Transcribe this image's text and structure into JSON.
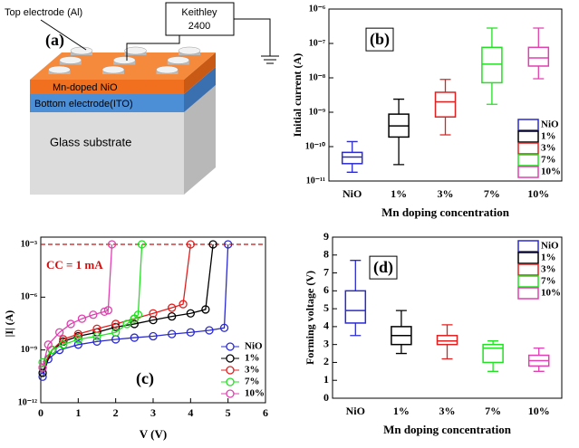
{
  "diagram": {
    "label": "(a)",
    "top_electrode": "Top electrode (Al)",
    "instrument_line1": "Keithley",
    "instrument_line2": "2400",
    "layer1": "Mn-doped NiO",
    "layer2": "Bottom electrode(ITO)",
    "layer3": "Glass substrate"
  },
  "chart_data": [
    {
      "type": "box",
      "label": "(b)",
      "x_label": "Mn doping concentration",
      "y_label": "Initial current (A)",
      "categories": [
        "NiO",
        "1%",
        "3%",
        "7%",
        "10%"
      ],
      "colors": [
        "#2a2ad0",
        "#000000",
        "#e02020",
        "#22e022",
        "#e040b0"
      ],
      "min": [
        1.8e-11,
        3e-11,
        2.2e-10,
        1.7e-09,
        9.4e-09
      ],
      "q1": [
        3.2e-11,
        1.9e-10,
        7.3e-10,
        7.2e-09,
        2.2e-08
      ],
      "median": [
        5e-11,
        4e-10,
        2e-09,
        2.5e-08,
        3.8e-08
      ],
      "q3": [
        6.8e-11,
        8.8e-10,
        3.8e-09,
        7.7e-08,
        7.7e-08
      ],
      "max": [
        1.4e-10,
        2.4e-09,
        9e-09,
        2.8e-07,
        2.8e-07
      ],
      "log_y": true,
      "ylim": [
        1e-11,
        1e-06
      ],
      "yticks": [
        {
          "value": 1e-11,
          "label": "10⁻¹¹"
        },
        {
          "value": 1e-10,
          "label": "10⁻¹⁰"
        },
        {
          "value": 1e-09,
          "label": "10⁻⁹"
        },
        {
          "value": 1e-08,
          "label": "10⁻⁸"
        },
        {
          "value": 1e-07,
          "label": "10⁻⁷"
        },
        {
          "value": 1e-06,
          "label": "10⁻⁶"
        }
      ],
      "legend": "lower right"
    },
    {
      "type": "line",
      "label": "(c)",
      "x_label": "V (V)",
      "y_label": "|I| (A)",
      "series": [
        {
          "name": "NiO",
          "color": "#2a2ad0",
          "x": [
            0.05,
            0.2,
            0.5,
            1,
            1.5,
            2,
            2.5,
            3,
            3.5,
            4,
            4.5,
            4.9,
            5.0
          ],
          "values": [
            3e-11,
            3e-10,
            1e-09,
            2e-09,
            3e-09,
            4e-09,
            5e-09,
            6e-09,
            8e-09,
            1e-08,
            1.3e-08,
            1.8e-08,
            0.001
          ]
        },
        {
          "name": "1%",
          "color": "#000000",
          "x": [
            0.05,
            0.3,
            0.6,
            1,
            1.5,
            2,
            2.5,
            3,
            3.5,
            4,
            4.4,
            4.6
          ],
          "values": [
            5e-11,
            1e-09,
            3e-09,
            6e-09,
            1e-08,
            2e-08,
            3e-08,
            5e-08,
            8e-08,
            1.2e-07,
            2e-07,
            0.001
          ]
        },
        {
          "name": "3%",
          "color": "#e02020",
          "x": [
            0.05,
            0.3,
            0.6,
            1,
            1.5,
            2,
            2.5,
            3,
            3.5,
            3.8,
            4.0
          ],
          "values": [
            1e-10,
            1e-09,
            4e-09,
            8e-09,
            1.6e-08,
            3e-08,
            6e-08,
            1.2e-07,
            2.5e-07,
            4e-07,
            0.001
          ]
        },
        {
          "name": "7%",
          "color": "#22e022",
          "x": [
            0.05,
            0.3,
            0.6,
            1,
            1.5,
            2,
            2.3,
            2.5,
            2.6,
            2.7
          ],
          "values": [
            2e-10,
            1e-09,
            2e-09,
            4e-09,
            6e-09,
            1e-08,
            3e-08,
            6e-08,
            1e-07,
            0.001
          ]
        },
        {
          "name": "10%",
          "color": "#e040b0",
          "x": [
            0.05,
            0.2,
            0.5,
            0.8,
            1.1,
            1.4,
            1.7,
            1.8,
            1.9
          ],
          "values": [
            1e-10,
            2e-09,
            1e-08,
            3e-08,
            6e-08,
            1e-07,
            1.5e-07,
            1.8e-07,
            0.001
          ]
        }
      ],
      "annotations": [
        {
          "text": "CC = 1 mA",
          "value": 0.001,
          "color": "#d01010"
        }
      ],
      "xlim": [
        0,
        6
      ],
      "xticks": [
        0,
        1,
        2,
        3,
        4,
        5,
        6
      ],
      "log_y": true,
      "ylim": [
        1e-12,
        0.001
      ],
      "yticks": [
        {
          "value": 1e-12,
          "label": "10⁻¹²"
        },
        {
          "value": 1e-09,
          "label": "10⁻⁹"
        },
        {
          "value": 1e-06,
          "label": "10⁻⁶"
        },
        {
          "value": 0.001,
          "label": "10⁻³"
        }
      ],
      "legend": "lower right"
    },
    {
      "type": "box",
      "label": "(d)",
      "x_label": "Mn doping concentration",
      "y_label": "Forming voltage (V)",
      "categories": [
        "NiO",
        "1%",
        "3%",
        "7%",
        "10%"
      ],
      "colors": [
        "#2a2ad0",
        "#000000",
        "#e02020",
        "#22e022",
        "#e040b0"
      ],
      "min": [
        3.5,
        2.5,
        2.2,
        1.5,
        1.5
      ],
      "q1": [
        4.2,
        3.0,
        3.0,
        2.0,
        1.8
      ],
      "median": [
        4.9,
        3.5,
        3.2,
        2.8,
        2.1
      ],
      "q3": [
        6.0,
        4.0,
        3.5,
        3.0,
        2.4
      ],
      "max": [
        7.7,
        4.9,
        4.1,
        3.2,
        2.8
      ],
      "log_y": false,
      "ylim": [
        0,
        9
      ],
      "yticks": [
        0,
        1,
        2,
        3,
        4,
        5,
        6,
        7,
        8,
        9
      ],
      "legend": "upper right"
    }
  ]
}
